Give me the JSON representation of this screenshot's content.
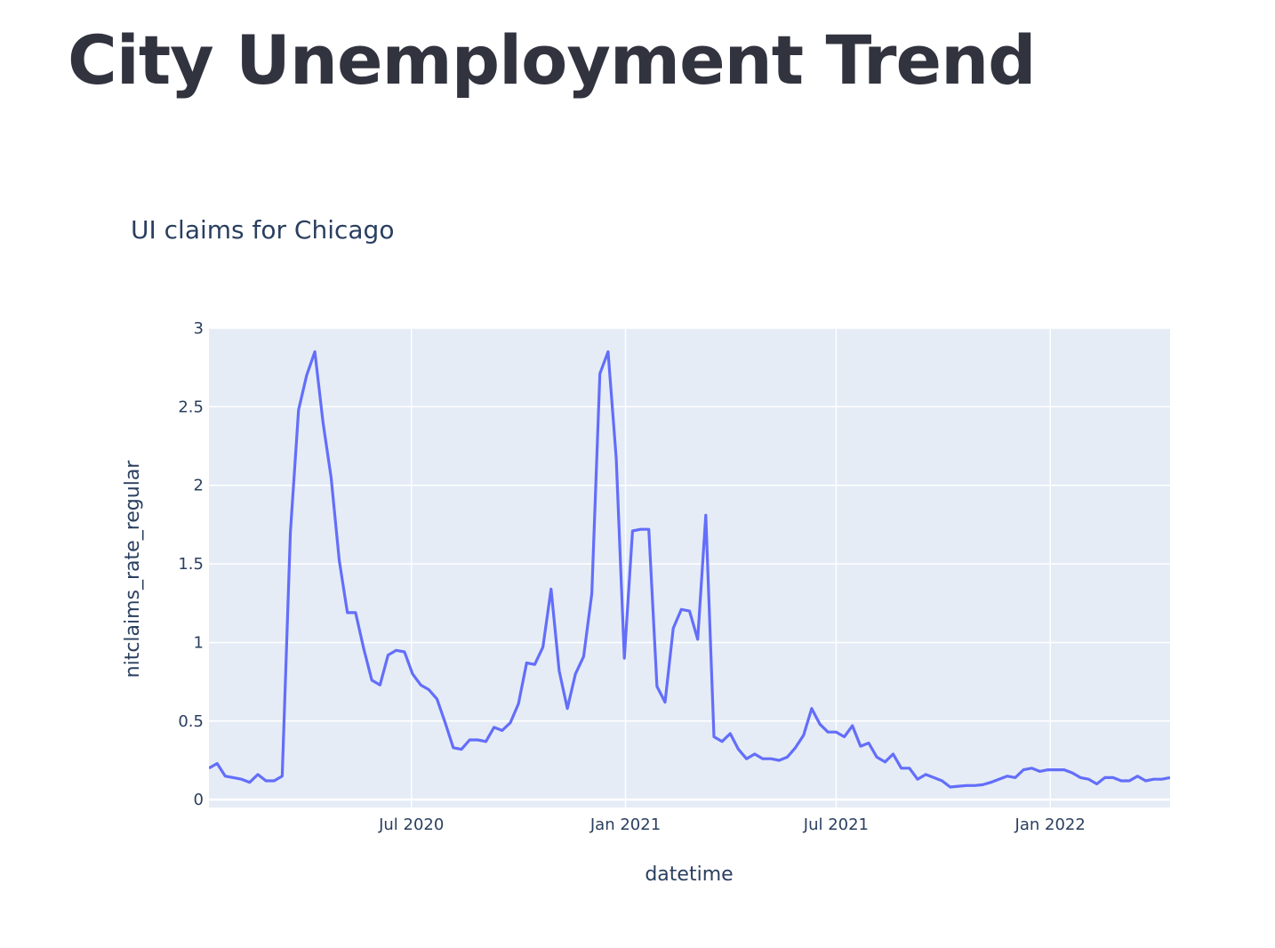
{
  "page": {
    "title": "City Unemployment Trend"
  },
  "chart_data": {
    "type": "line",
    "title": "UI claims for Chicago",
    "xlabel": "datetime",
    "ylabel": "nitclaims_rate_regular",
    "ylim": [
      -0.05,
      3
    ],
    "xlim": [
      "2020-01-09",
      "2022-04-14"
    ],
    "yticks": [
      0,
      0.5,
      1,
      1.5,
      2,
      2.5,
      3
    ],
    "ytick_labels": [
      "0",
      "0.5",
      "1",
      "1.5",
      "2",
      "2.5",
      "3"
    ],
    "xticks": [
      "2020-07-01",
      "2021-01-01",
      "2021-07-01",
      "2022-01-01"
    ],
    "xtick_labels": [
      "Jul 2020",
      "Jan 2021",
      "Jul 2021",
      "Jan 2022"
    ],
    "grid": true,
    "legend": "none",
    "colors": {
      "line": "#636efa",
      "plot_bg": "#e5ecf6",
      "grid": "#ffffff"
    },
    "series": [
      {
        "x": [
          "2020-01-09",
          "2020-01-16",
          "2020-01-23",
          "2020-01-30",
          "2020-02-06",
          "2020-02-13",
          "2020-02-20",
          "2020-02-27",
          "2020-03-05",
          "2020-03-12",
          "2020-03-19",
          "2020-03-26",
          "2020-04-02",
          "2020-04-09",
          "2020-04-16",
          "2020-04-23",
          "2020-04-30",
          "2020-05-07",
          "2020-05-14",
          "2020-05-21",
          "2020-05-28",
          "2020-06-04",
          "2020-06-11",
          "2020-06-18",
          "2020-06-25",
          "2020-07-02",
          "2020-07-09",
          "2020-07-16",
          "2020-07-23",
          "2020-07-30",
          "2020-08-06",
          "2020-08-13",
          "2020-08-20",
          "2020-08-27",
          "2020-09-03",
          "2020-09-10",
          "2020-09-17",
          "2020-09-24",
          "2020-10-01",
          "2020-10-08",
          "2020-10-15",
          "2020-10-22",
          "2020-10-29",
          "2020-11-05",
          "2020-11-12",
          "2020-11-19",
          "2020-11-26",
          "2020-12-03",
          "2020-12-10",
          "2020-12-17",
          "2020-12-24",
          "2020-12-31",
          "2021-01-07",
          "2021-01-14",
          "2021-01-21",
          "2021-01-28",
          "2021-02-04",
          "2021-02-11",
          "2021-02-18",
          "2021-02-25",
          "2021-03-04",
          "2021-03-11",
          "2021-03-18",
          "2021-03-25",
          "2021-04-01",
          "2021-04-08",
          "2021-04-15",
          "2021-04-22",
          "2021-04-29",
          "2021-05-06",
          "2021-05-13",
          "2021-05-20",
          "2021-05-27",
          "2021-06-03",
          "2021-06-10",
          "2021-06-17",
          "2021-06-24",
          "2021-07-01",
          "2021-07-08",
          "2021-07-15",
          "2021-07-22",
          "2021-07-29",
          "2021-08-05",
          "2021-08-12",
          "2021-08-19",
          "2021-08-26",
          "2021-09-02",
          "2021-09-09",
          "2021-09-16",
          "2021-09-23",
          "2021-09-30",
          "2021-10-07",
          "2021-10-14",
          "2021-10-21",
          "2021-10-28",
          "2021-11-04",
          "2021-11-11",
          "2021-11-18",
          "2021-11-25",
          "2021-12-02",
          "2021-12-09",
          "2021-12-16",
          "2021-12-23",
          "2021-12-30",
          "2022-01-06",
          "2022-01-13",
          "2022-01-20",
          "2022-01-27",
          "2022-02-03",
          "2022-02-10",
          "2022-02-17",
          "2022-02-24",
          "2022-03-03",
          "2022-03-10",
          "2022-03-17",
          "2022-03-24",
          "2022-03-31",
          "2022-04-07",
          "2022-04-14"
        ],
        "y": [
          0.2,
          0.23,
          0.15,
          0.14,
          0.13,
          0.11,
          0.16,
          0.12,
          0.12,
          0.15,
          1.7,
          2.48,
          2.7,
          2.85,
          2.4,
          2.05,
          1.52,
          1.19,
          1.19,
          0.96,
          0.76,
          0.73,
          0.92,
          0.95,
          0.94,
          0.8,
          0.73,
          0.7,
          0.64,
          0.49,
          0.33,
          0.32,
          0.38,
          0.38,
          0.37,
          0.46,
          0.44,
          0.49,
          0.61,
          0.87,
          0.86,
          0.97,
          1.34,
          0.82,
          0.58,
          0.8,
          0.91,
          1.31,
          2.71,
          2.85,
          2.17,
          0.9,
          1.71,
          1.72,
          1.72,
          0.72,
          0.62,
          1.09,
          1.21,
          1.2,
          1.02,
          1.81,
          0.4,
          0.37,
          0.42,
          0.32,
          0.26,
          0.29,
          0.26,
          0.26,
          0.25,
          0.27,
          0.33,
          0.41,
          0.58,
          0.48,
          0.43,
          0.43,
          0.4,
          0.47,
          0.34,
          0.36,
          0.27,
          0.24,
          0.29,
          0.2,
          0.2,
          0.13,
          0.16,
          0.14,
          0.12,
          0.08,
          0.085,
          0.09,
          0.09,
          0.095,
          0.11,
          0.13,
          0.15,
          0.14,
          0.19,
          0.2,
          0.18,
          0.19,
          0.19,
          0.19,
          0.17,
          0.14,
          0.13,
          0.1,
          0.14,
          0.14,
          0.12,
          0.12,
          0.15,
          0.12,
          0.13,
          0.13,
          0.14
        ]
      }
    ]
  }
}
